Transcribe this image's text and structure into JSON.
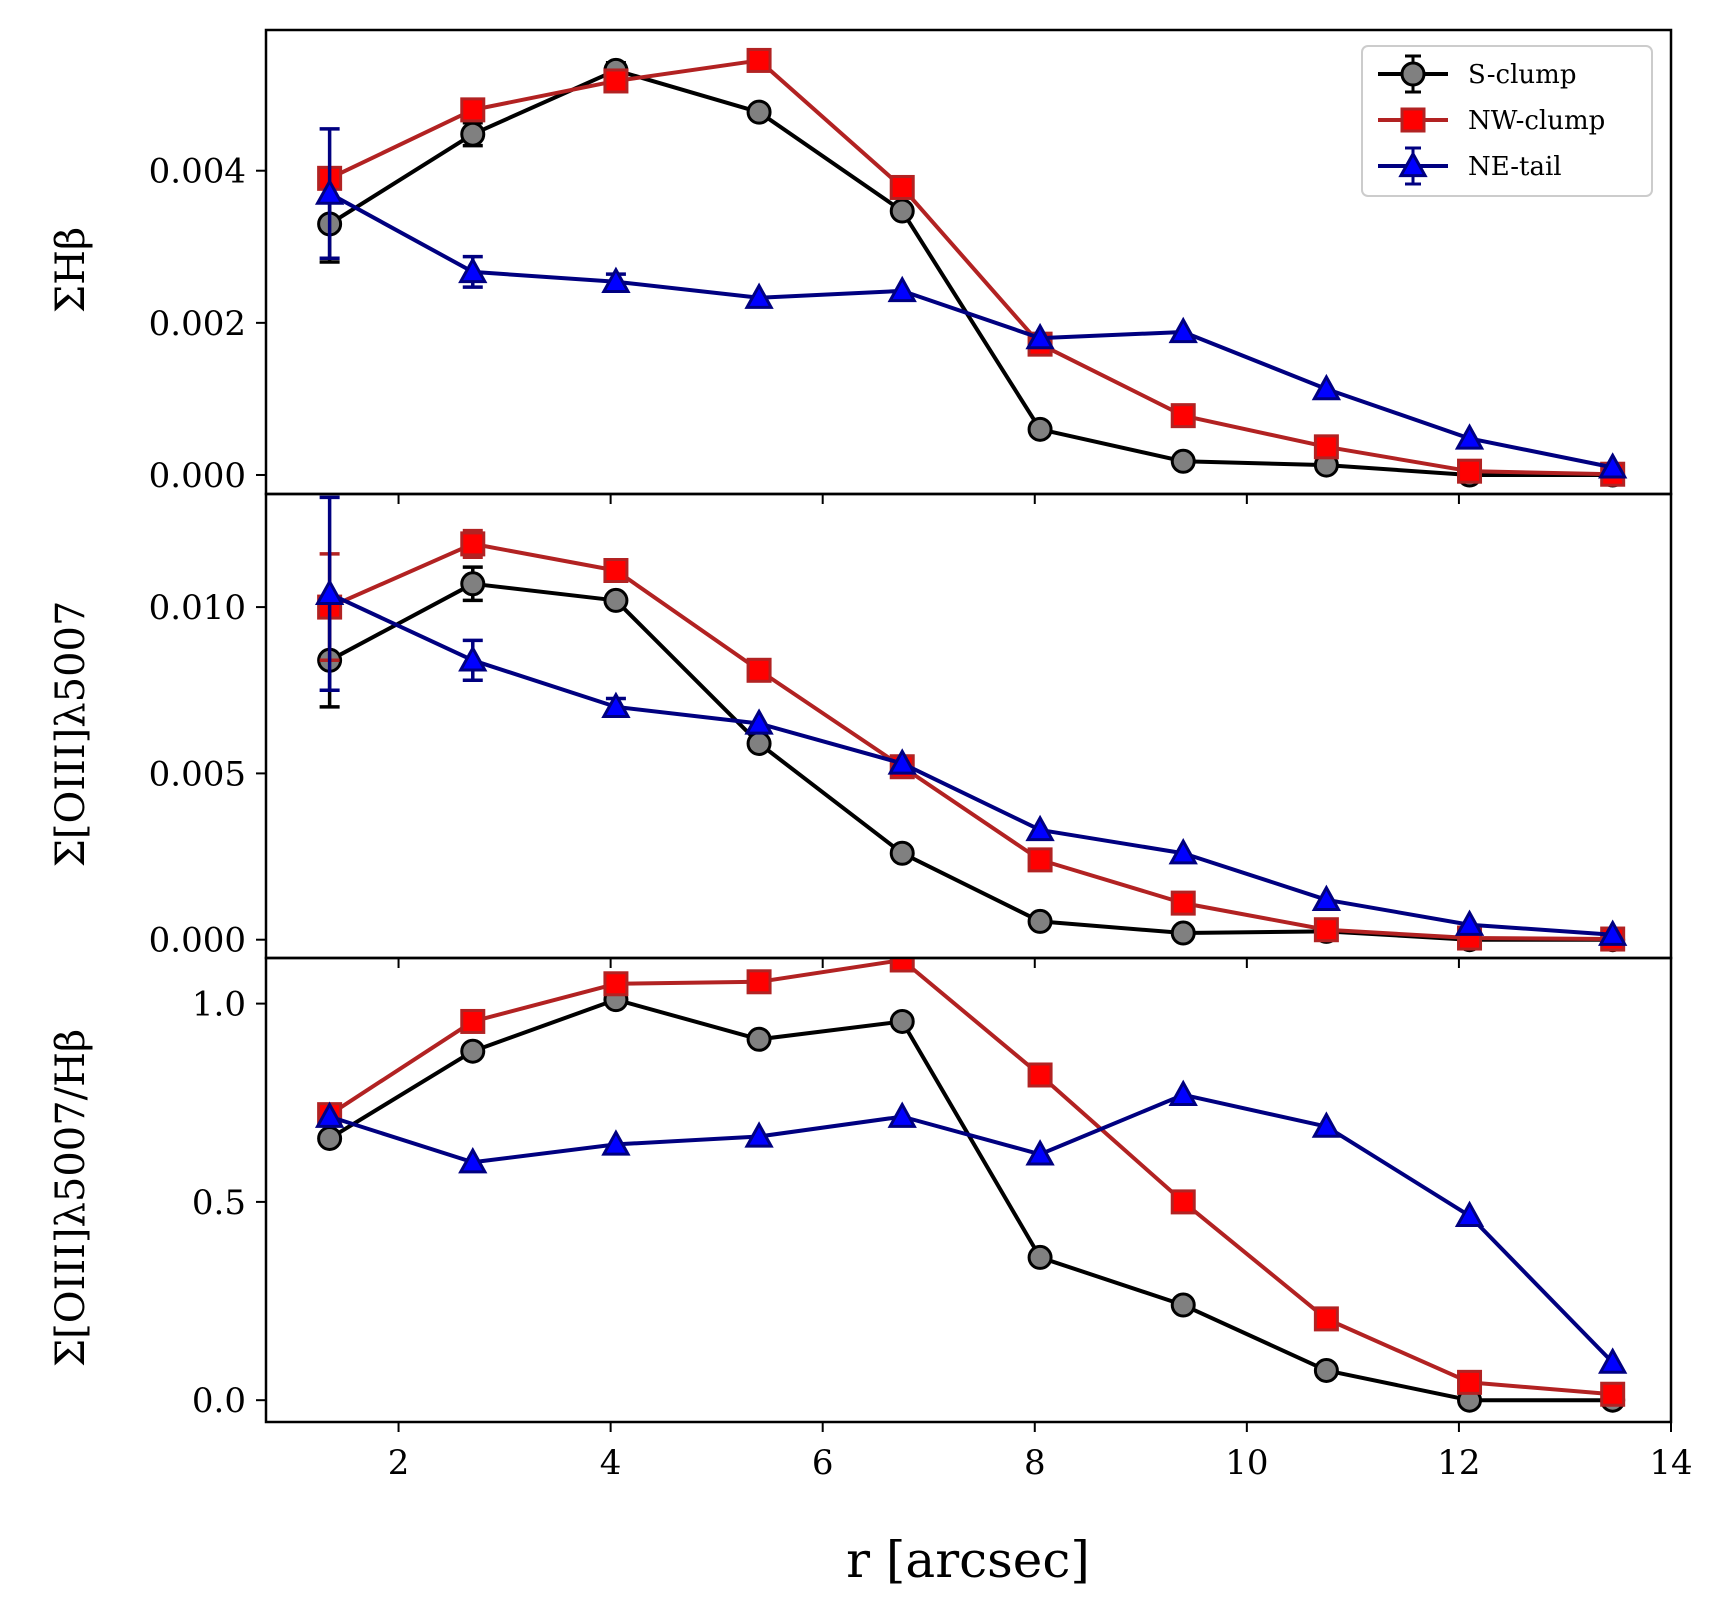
{
  "chart_data": [
    {
      "type": "line",
      "panel": "top",
      "ylabel": "ΣHβ",
      "xlim": [
        0.75,
        14.0
      ],
      "ylim": [
        -0.00025,
        0.00585
      ],
      "yticks": [
        0.0,
        0.002,
        0.004
      ],
      "ytick_labels": [
        "0.000",
        "0.002",
        "0.004"
      ],
      "x": [
        1.35,
        2.7,
        4.05,
        5.4,
        6.75,
        8.05,
        9.4,
        10.75,
        12.1,
        13.45
      ],
      "series": [
        {
          "name": "S-clump",
          "values": [
            0.0033,
            0.00448,
            0.00532,
            0.00477,
            0.00347,
            0.0006,
            0.00018,
            0.00013,
            0.0,
            0.0
          ],
          "errors": [
            0.0005,
            0.00015,
            0.0001,
            0.0,
            0.0,
            0,
            0,
            0,
            0,
            0
          ]
        },
        {
          "name": "NW-clump",
          "values": [
            0.0039,
            0.0048,
            0.00518,
            0.00545,
            0.00378,
            0.00172,
            0.00078,
            0.00037,
            5e-05,
            1e-05
          ],
          "errors": [
            0,
            0,
            0,
            0,
            0,
            0,
            0,
            0,
            0,
            0
          ]
        },
        {
          "name": "NE-tail",
          "values": [
            0.0037,
            0.00267,
            0.00254,
            0.00233,
            0.00242,
            0.0018,
            0.00188,
            0.00113,
            0.00048,
            0.0001
          ],
          "errors": [
            0.00085,
            0.0002,
            0.0001,
            0,
            0,
            0,
            0,
            0,
            0,
            0
          ]
        }
      ]
    },
    {
      "type": "line",
      "panel": "middle",
      "ylabel": "Σ[OIII]λ5007",
      "xlim": [
        0.75,
        14.0
      ],
      "ylim": [
        -0.00055,
        0.0134
      ],
      "yticks": [
        0.0,
        0.005,
        0.01
      ],
      "ytick_labels": [
        "0.000",
        "0.005",
        "0.010"
      ],
      "x": [
        1.35,
        2.7,
        4.05,
        5.4,
        6.75,
        8.05,
        9.4,
        10.75,
        12.1,
        13.45
      ],
      "series": [
        {
          "name": "S-clump",
          "values": [
            0.0084,
            0.0107,
            0.0102,
            0.0059,
            0.0026,
            0.00055,
            0.0002,
            0.00025,
            0.0,
            0.0
          ],
          "errors": [
            0.0014,
            0.0005,
            0,
            0,
            0,
            0,
            0,
            0,
            0,
            0
          ]
        },
        {
          "name": "NW-clump",
          "values": [
            0.01,
            0.0119,
            0.0111,
            0.0081,
            0.0052,
            0.0024,
            0.0011,
            0.0003,
            5e-05,
            2e-05
          ],
          "errors": [
            0.0016,
            0.0004,
            0,
            0,
            0,
            0,
            0,
            0,
            0,
            0
          ]
        },
        {
          "name": "NE-tail",
          "values": [
            0.0104,
            0.0084,
            0.007,
            0.0065,
            0.0053,
            0.0033,
            0.0026,
            0.0012,
            0.00045,
            0.00015
          ],
          "errors": [
            0.0029,
            0.0006,
            0.00025,
            0,
            0,
            0,
            0,
            0,
            0,
            0
          ]
        }
      ]
    },
    {
      "type": "line",
      "panel": "bottom",
      "ylabel": "Σ[OIII]λ5007/Hβ",
      "xlabel": "r [arcsec]",
      "xlim": [
        0.75,
        14.0
      ],
      "ylim": [
        -0.055,
        1.115
      ],
      "yticks": [
        0.0,
        0.5,
        1.0
      ],
      "ytick_labels": [
        "0.0",
        "0.5",
        "1.0"
      ],
      "xticks": [
        2,
        4,
        6,
        8,
        10,
        12,
        14
      ],
      "xtick_labels": [
        "2",
        "4",
        "6",
        "8",
        "10",
        "12",
        "14"
      ],
      "x": [
        1.35,
        2.7,
        4.05,
        5.4,
        6.75,
        8.05,
        9.4,
        10.75,
        12.1,
        13.45
      ],
      "series": [
        {
          "name": "S-clump",
          "values": [
            0.66,
            0.88,
            1.01,
            0.91,
            0.955,
            0.36,
            0.24,
            0.075,
            0.0,
            0.0
          ],
          "errors": [
            0,
            0,
            0,
            0,
            0,
            0,
            0,
            0,
            0,
            0
          ]
        },
        {
          "name": "NW-clump",
          "values": [
            0.72,
            0.955,
            1.05,
            1.055,
            1.11,
            0.82,
            0.5,
            0.205,
            0.045,
            0.015
          ],
          "errors": [
            0,
            0,
            0,
            0,
            0,
            0,
            0,
            0,
            0,
            0
          ]
        },
        {
          "name": "NE-tail",
          "values": [
            0.715,
            0.6,
            0.645,
            0.665,
            0.715,
            0.62,
            0.77,
            0.69,
            0.465,
            0.095
          ],
          "errors": [
            0,
            0,
            0,
            0,
            0,
            0,
            0,
            0,
            0,
            0
          ]
        }
      ]
    }
  ],
  "legend": {
    "position": "top-right",
    "entries": [
      "S-clump",
      "NW-clump",
      "NE-tail"
    ]
  },
  "colors": {
    "S-clump": {
      "line": "#000000",
      "marker_fill": "#808080",
      "marker_edge": "#000000",
      "marker": "circle"
    },
    "NW-clump": {
      "line": "#b22222",
      "marker_fill": "#ff0000",
      "marker_edge": "#b22222",
      "marker": "square"
    },
    "NE-tail": {
      "line": "#000080",
      "marker_fill": "#0000ff",
      "marker_edge": "#000080",
      "marker": "triangle"
    }
  }
}
